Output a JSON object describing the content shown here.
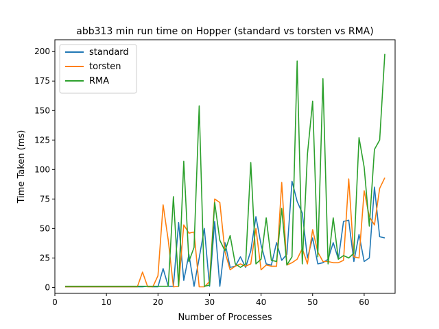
{
  "chart_data": {
    "type": "line",
    "title": "abb313 min run time on Hopper (standard vs torsten vs RMA)",
    "xlabel": "Number of Processes",
    "ylabel": "Time Taken (ms)",
    "xlim": [
      0,
      66
    ],
    "ylim": [
      -5,
      210
    ],
    "xticks": [
      0,
      10,
      20,
      30,
      40,
      50,
      60
    ],
    "yticks": [
      0,
      25,
      50,
      75,
      100,
      125,
      150,
      175,
      200
    ],
    "grid": false,
    "legend_position": "top-left",
    "x": [
      2,
      3,
      4,
      5,
      6,
      7,
      8,
      9,
      10,
      11,
      12,
      13,
      14,
      15,
      16,
      17,
      18,
      19,
      20,
      21,
      22,
      23,
      24,
      25,
      26,
      27,
      28,
      29,
      30,
      31,
      32,
      33,
      34,
      35,
      36,
      37,
      38,
      39,
      40,
      41,
      42,
      43,
      44,
      45,
      46,
      47,
      48,
      49,
      50,
      51,
      52,
      53,
      54,
      55,
      56,
      57,
      58,
      59,
      60,
      61,
      62,
      63,
      64
    ],
    "series": [
      {
        "name": "standard",
        "color": "#1f77b4",
        "values": [
          0.5,
          0.5,
          0.5,
          0.5,
          0.5,
          0.5,
          0.5,
          0.5,
          0.5,
          0.5,
          0.5,
          0.5,
          0.5,
          0.5,
          0.5,
          0.5,
          1,
          0.5,
          0.5,
          16,
          1,
          1,
          55,
          6,
          28,
          1,
          25,
          50,
          1,
          56,
          1,
          38,
          17,
          18,
          26,
          17,
          31,
          60,
          36,
          20,
          19,
          38,
          23,
          28,
          90,
          73,
          63,
          25,
          42,
          20,
          21,
          24,
          38,
          24,
          56,
          57,
          22,
          45,
          22,
          25,
          85,
          43,
          42
        ]
      },
      {
        "name": "torsten",
        "color": "#ff7f0e",
        "values": [
          0.5,
          0.5,
          0.5,
          0.5,
          0.5,
          0.5,
          0.5,
          0.5,
          0.5,
          0.5,
          0.5,
          0.5,
          0.5,
          0.5,
          0.5,
          13,
          0.5,
          0.5,
          10,
          70,
          40,
          0.5,
          1,
          53,
          46,
          47,
          0.5,
          0.5,
          5,
          75,
          72,
          30,
          15,
          18,
          20,
          18,
          20,
          50,
          15,
          19,
          18,
          18,
          89,
          19,
          21,
          24,
          33,
          20,
          49,
          30,
          22,
          22,
          21,
          21,
          23,
          92,
          26,
          25,
          82,
          60,
          53,
          84,
          93
        ]
      },
      {
        "name": "RMA",
        "color": "#2ca02c",
        "values": [
          1,
          1,
          1,
          1,
          1,
          1,
          1,
          1,
          1,
          1,
          1,
          1,
          1,
          1,
          1,
          1,
          1,
          1,
          1,
          1,
          1,
          77,
          1,
          107,
          22,
          34,
          154,
          1,
          2,
          72,
          40,
          31,
          44,
          20,
          17,
          20,
          106,
          20,
          24,
          59,
          23,
          22,
          67,
          19,
          26,
          192,
          20,
          113,
          158,
          26,
          177,
          20,
          59,
          24,
          27,
          25,
          29,
          127,
          102,
          52,
          117,
          125,
          198
        ]
      }
    ]
  }
}
